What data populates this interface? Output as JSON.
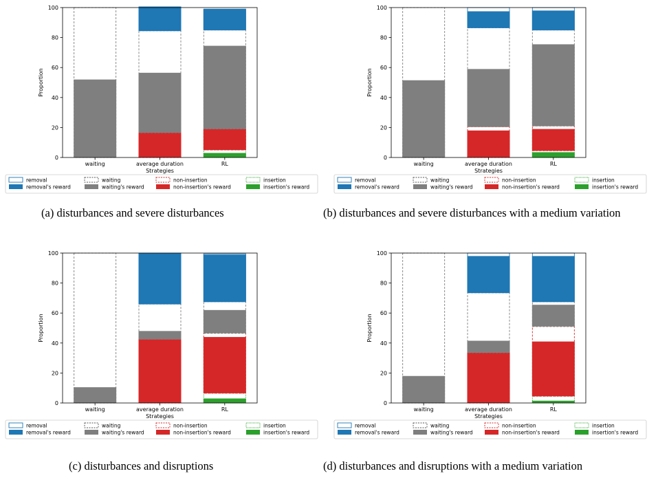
{
  "colors": {
    "removal": "#1f77b4",
    "waiting": "#7f7f7f",
    "non_insertion": "#d62728",
    "insertion": "#2ca02c",
    "outline_waiting": "#7f7f7f"
  },
  "legend_labels": {
    "removal": "removal",
    "removal_reward": "removal's reward",
    "waiting": "waiting",
    "waiting_reward": "waiting's reward",
    "non_insertion": "non-insertion",
    "non_insertion_reward": "non-insertion's reward",
    "insertion": "insertion",
    "insertion_reward": "insertion's reward"
  },
  "chart_data": [
    {
      "type": "bar",
      "stacked": true,
      "caption": "(a)  disturbances and severe disturbances",
      "xlabel": "Strategies",
      "ylabel": "Proportion",
      "ylim": [
        0,
        100
      ],
      "yticks": [
        0,
        20,
        40,
        60,
        80,
        100
      ],
      "categories": [
        "waiting",
        "average duration",
        "RL"
      ],
      "legend_position": "bottom",
      "strategies": [
        {
          "insertion": [
            0,
            0
          ],
          "non_insertion": [
            0,
            0
          ],
          "waiting": [
            52,
            100
          ],
          "removal": [
            0,
            0
          ]
        },
        {
          "insertion": [
            0,
            0
          ],
          "non_insertion": [
            16.5,
            16.5
          ],
          "waiting": [
            40,
            68
          ],
          "removal": [
            16,
            16
          ]
        },
        {
          "insertion": [
            3,
            5
          ],
          "non_insertion": [
            14,
            14
          ],
          "waiting": [
            55.5,
            66
          ],
          "removal": [
            14,
            14
          ]
        }
      ]
    },
    {
      "type": "bar",
      "stacked": true,
      "caption": "(b)  disturbances and severe disturbances with a medium variation",
      "xlabel": "Strategies",
      "ylabel": "Proportion",
      "ylim": [
        0,
        100
      ],
      "yticks": [
        0,
        20,
        40,
        60,
        80,
        100
      ],
      "categories": [
        "waiting",
        "average duration",
        "RL"
      ],
      "legend_position": "bottom",
      "strategies": [
        {
          "insertion": [
            0,
            0
          ],
          "non_insertion": [
            0,
            0
          ],
          "waiting": [
            51.5,
            100
          ],
          "removal": [
            0,
            0
          ]
        },
        {
          "insertion": [
            0,
            0
          ],
          "non_insertion": [
            18,
            20.5
          ],
          "waiting": [
            38.5,
            66
          ],
          "removal": [
            11,
            13.5
          ]
        },
        {
          "insertion": [
            3.5,
            4.5
          ],
          "non_insertion": [
            14.5,
            16.5
          ],
          "waiting": [
            54.5,
            64
          ],
          "removal": [
            13,
            15
          ]
        }
      ]
    },
    {
      "type": "bar",
      "stacked": true,
      "caption": "(c)  disturbances and disruptions",
      "xlabel": "Strategies",
      "ylabel": "Proportion",
      "ylim": [
        0,
        100
      ],
      "yticks": [
        0,
        20,
        40,
        60,
        80,
        100
      ],
      "categories": [
        "waiting",
        "average duration",
        "RL"
      ],
      "legend_position": "bottom",
      "strategies": [
        {
          "insertion": [
            0,
            0
          ],
          "non_insertion": [
            0,
            0
          ],
          "waiting": [
            10.5,
            100
          ],
          "removal": [
            0,
            0
          ]
        },
        {
          "insertion": [
            0,
            0
          ],
          "non_insertion": [
            42.5,
            42.5
          ],
          "waiting": [
            5.5,
            23.5
          ],
          "removal": [
            34,
            34
          ]
        },
        {
          "insertion": [
            3,
            6.5
          ],
          "non_insertion": [
            37.5,
            40
          ],
          "waiting": [
            15.5,
            21
          ],
          "removal": [
            31.5,
            32
          ]
        }
      ]
    },
    {
      "type": "bar",
      "stacked": true,
      "caption": "(d)  disturbances and disruptions with a medium variation",
      "xlabel": "Strategies",
      "ylabel": "Proportion",
      "ylim": [
        0,
        100
      ],
      "yticks": [
        0,
        20,
        40,
        60,
        80,
        100
      ],
      "categories": [
        "waiting",
        "average duration",
        "RL"
      ],
      "legend_position": "bottom",
      "strategies": [
        {
          "insertion": [
            0,
            0
          ],
          "non_insertion": [
            0,
            0
          ],
          "waiting": [
            18,
            100
          ],
          "removal": [
            0,
            0
          ]
        },
        {
          "insertion": [
            0,
            0
          ],
          "non_insertion": [
            33.5,
            33.5
          ],
          "waiting": [
            8,
            40
          ],
          "removal": [
            24.5,
            26.5
          ]
        },
        {
          "insertion": [
            1.5,
            4.5
          ],
          "non_insertion": [
            36.5,
            46.5
          ],
          "waiting": [
            14.5,
            16.5
          ],
          "removal": [
            30.5,
            32.5
          ]
        }
      ]
    }
  ]
}
